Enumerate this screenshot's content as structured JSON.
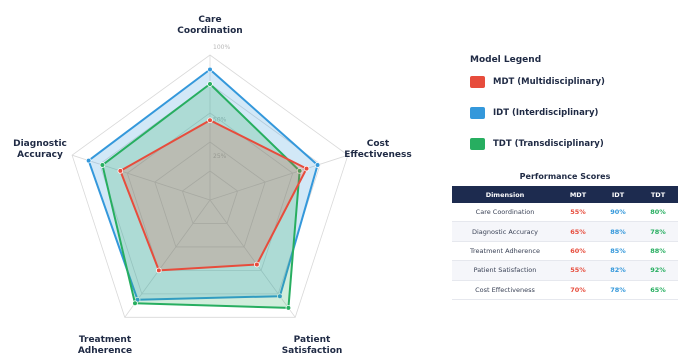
{
  "chart_data": {
    "type": "radar",
    "axes": [
      "Care Coordination",
      "Cost Effectiveness",
      "Patient Satisfaction",
      "Treatment Adherence",
      "Diagnostic Accuracy"
    ],
    "axis_label_lines": [
      [
        "Care",
        "Coordination"
      ],
      [
        "Cost",
        "Effectiveness"
      ],
      [
        "Patient",
        "Satisfaction"
      ],
      [
        "Treatment",
        "Adherence"
      ],
      [
        "Diagnostic",
        "Accuracy"
      ]
    ],
    "ring_labels": [
      "100%",
      "50%",
      "25%"
    ],
    "ring_values": [
      100,
      50,
      25
    ],
    "rmax": 100,
    "series": [
      {
        "name": "MDT (Multidisciplinary)",
        "key": "MDT",
        "color": "#e74c3c",
        "values": [
          55,
          70,
          55,
          60,
          65
        ]
      },
      {
        "name": "IDT (Interdisciplinary)",
        "key": "IDT",
        "color": "#3498db",
        "values": [
          90,
          78,
          82,
          85,
          88
        ]
      },
      {
        "name": "TDT (Transdisciplinary)",
        "key": "TDT",
        "color": "#27ae60",
        "values": [
          80,
          65,
          92,
          88,
          78
        ]
      }
    ],
    "legend": {
      "title": "Model Legend",
      "position": "right"
    }
  },
  "table": {
    "title": "Performance Scores",
    "headers": [
      "Dimension",
      "MDT",
      "IDT",
      "TDT"
    ],
    "rows": [
      [
        "Care Coordination",
        "55%",
        "90%",
        "80%"
      ],
      [
        "Diagnostic Accuracy",
        "65%",
        "88%",
        "78%"
      ],
      [
        "Treatment Adherence",
        "60%",
        "85%",
        "88%"
      ],
      [
        "Patient Satisfaction",
        "55%",
        "82%",
        "92%"
      ],
      [
        "Cost Effectiveness",
        "70%",
        "78%",
        "65%"
      ]
    ]
  }
}
